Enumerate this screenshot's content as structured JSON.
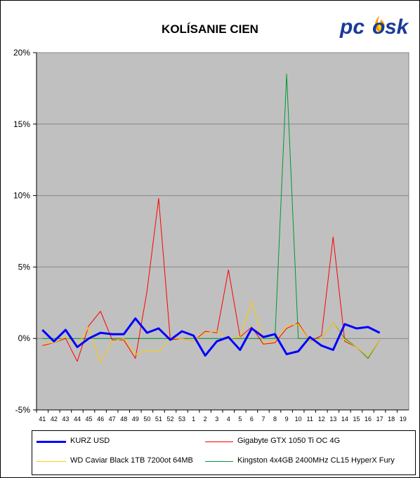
{
  "chart_data": {
    "type": "line",
    "title": "KOLÍSANIE CIEN",
    "xlabel": "",
    "ylabel": "",
    "ylim": [
      -5,
      20
    ],
    "y_ticks": [
      "20%",
      "15%",
      "10%",
      "5%",
      "0%",
      "-5%"
    ],
    "y_tick_values": [
      20,
      15,
      10,
      5,
      0,
      -5
    ],
    "grid": true,
    "legend_position": "bottom",
    "categories": [
      "41",
      "42",
      "43",
      "44",
      "45",
      "46",
      "47",
      "48",
      "49",
      "50",
      "51",
      "52",
      "53",
      "1",
      "2",
      "3",
      "4",
      "5",
      "6",
      "7",
      "8",
      "9",
      "10",
      "11",
      "12",
      "13",
      "14",
      "15",
      "16",
      "17",
      "18",
      "19"
    ],
    "series": [
      {
        "name": "KURZ USD",
        "color": "#0000ff",
        "bold": true,
        "values": [
          0.6,
          -0.2,
          0.6,
          -0.6,
          0.0,
          0.4,
          0.3,
          0.3,
          1.4,
          0.4,
          0.7,
          -0.1,
          0.5,
          0.2,
          -1.2,
          -0.2,
          0.1,
          -0.8,
          0.7,
          0.1,
          0.3,
          -1.1,
          -0.9,
          0.1,
          -0.5,
          -0.8,
          1.0,
          0.7,
          0.8,
          0.4,
          null,
          null
        ]
      },
      {
        "name": "Gigabyte GTX 1050 Ti OC 4G",
        "color": "#ff0000",
        "bold": false,
        "values": [
          -0.5,
          -0.3,
          0.0,
          -1.6,
          0.9,
          1.9,
          -0.1,
          -0.1,
          -1.4,
          3.3,
          9.8,
          -0.1,
          0.0,
          -0.2,
          0.5,
          0.4,
          4.8,
          0.1,
          0.8,
          -0.4,
          -0.3,
          0.7,
          1.1,
          -0.2,
          0.2,
          7.1,
          -0.2,
          -0.6,
          -1.3,
          -0.1,
          null,
          null
        ]
      },
      {
        "name": "WD Caviar Black 1TB 7200ot 64MB",
        "color": "#ffcc00",
        "bold": false,
        "values": [
          -0.4,
          -0.3,
          0.1,
          -0.5,
          0.8,
          -1.7,
          -0.2,
          0.0,
          -1.1,
          -0.8,
          -0.9,
          0.0,
          0.0,
          -0.2,
          0.4,
          0.5,
          0.0,
          0.1,
          2.6,
          -0.3,
          -0.2,
          0.9,
          1.0,
          -0.2,
          0.0,
          1.1,
          -0.1,
          -0.6,
          -1.3,
          -0.1,
          null,
          null
        ]
      },
      {
        "name": "Kingston 4x4GB 2400MHz CL15 HyperX Fury",
        "color": "#009933",
        "bold": false,
        "values": [
          0.0,
          0.0,
          0.0,
          0.0,
          0.0,
          0.0,
          0.0,
          0.0,
          0.0,
          0.0,
          0.0,
          0.0,
          0.0,
          0.0,
          0.0,
          0.0,
          0.0,
          0.0,
          0.0,
          0.0,
          0.0,
          18.5,
          0.0,
          0.0,
          0.0,
          1.1,
          0.0,
          -0.6,
          -1.4,
          -0.1,
          null,
          null
        ]
      }
    ]
  },
  "logo": {
    "text": "pc sk",
    "name": "pcsk-logo"
  },
  "colors": {
    "plot_background": "#c0c0c0",
    "gridline": "#888888",
    "frame": "#000000"
  }
}
